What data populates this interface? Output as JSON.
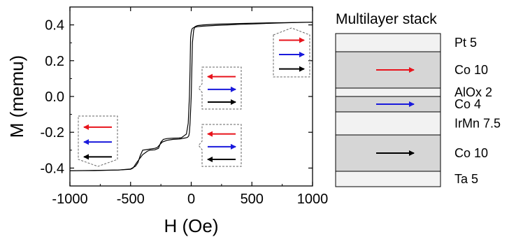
{
  "chart_data": {
    "type": "line",
    "xlabel": "H (Oe)",
    "ylabel": "M (memu)",
    "xlim": [
      -1000,
      1000
    ],
    "ylim": [
      -0.5,
      0.5
    ],
    "x_ticks": [
      "-1000",
      "-500",
      "0",
      "500",
      "1000"
    ],
    "x_tick_values": [
      -1000,
      -500,
      0,
      500,
      1000
    ],
    "y_ticks": [
      "0.4",
      "0.2",
      "0.0",
      "-0.2",
      "-0.4"
    ],
    "y_tick_values": [
      0.4,
      0.2,
      0.0,
      -0.2,
      -0.4
    ],
    "series": [
      {
        "values_x": [
          -1000,
          -800,
          -600,
          -500,
          -480,
          -450,
          -400,
          -360,
          -340,
          -300,
          -270,
          -250,
          -230,
          -200,
          -150,
          -100,
          -80,
          -70,
          -60,
          -40,
          -25,
          -15,
          -10,
          -5,
          0,
          5,
          10,
          20,
          50,
          100,
          200,
          300,
          400,
          500,
          600,
          700,
          800,
          900,
          1000
        ],
        "values_y": [
          -0.415,
          -0.413,
          -0.411,
          -0.407,
          -0.4,
          -0.37,
          -0.325,
          -0.305,
          -0.3,
          -0.298,
          -0.29,
          -0.255,
          -0.24,
          -0.235,
          -0.233,
          -0.232,
          -0.23,
          -0.225,
          -0.22,
          -0.21,
          -0.15,
          0.0,
          0.15,
          0.33,
          0.36,
          0.375,
          0.38,
          0.385,
          0.39,
          0.393,
          0.397,
          0.4,
          0.403,
          0.405,
          0.408,
          0.41,
          0.412,
          0.414,
          0.415
        ]
      },
      {
        "values_x": [
          1000,
          800,
          600,
          400,
          200,
          100,
          50,
          30,
          20,
          10,
          0,
          -10,
          -15,
          -20,
          -30,
          -40,
          -50,
          -60,
          -70,
          -80,
          -100,
          -150,
          -200,
          -240,
          -260,
          -280,
          -300,
          -350,
          -400,
          -420,
          -440,
          -460,
          -500,
          -600,
          -800,
          -1000
        ],
        "values_y": [
          0.415,
          0.413,
          0.411,
          0.408,
          0.404,
          0.4,
          0.396,
          0.39,
          0.37,
          0.3,
          0.0,
          -0.15,
          -0.2,
          -0.22,
          -0.228,
          -0.23,
          -0.232,
          -0.233,
          -0.234,
          -0.236,
          -0.238,
          -0.24,
          -0.245,
          -0.255,
          -0.27,
          -0.285,
          -0.29,
          -0.295,
          -0.3,
          -0.33,
          -0.37,
          -0.39,
          -0.405,
          -0.411,
          -0.414,
          -0.415
        ]
      }
    ],
    "grid": false,
    "insets": [
      {
        "arrows": [
          "left",
          "left",
          "left"
        ],
        "colors": [
          "#e8141c",
          "#1a1adc",
          "#000000"
        ]
      },
      {
        "arrows": [
          "left",
          "right",
          "left"
        ],
        "colors": [
          "#e8141c",
          "#1a1adc",
          "#000000"
        ]
      },
      {
        "arrows": [
          "left",
          "right",
          "right"
        ],
        "colors": [
          "#e8141c",
          "#1a1adc",
          "#000000"
        ]
      },
      {
        "arrows": [
          "right",
          "right",
          "right"
        ],
        "colors": [
          "#e8141c",
          "#1a1adc",
          "#000000"
        ]
      }
    ]
  },
  "stack": {
    "title": "Multilayer stack",
    "layers": [
      {
        "label": "Pt 5",
        "fill": "#f2f2f2",
        "arrow": null
      },
      {
        "label": "Co 10",
        "fill": "#d6d6d6",
        "arrow": "#e8141c"
      },
      {
        "label": "AlOx 2",
        "fill": "#f2f2f2",
        "arrow": null
      },
      {
        "label": "Co 4",
        "fill": "#d6d6d6",
        "arrow": "#1a1adc"
      },
      {
        "label": "IrMn 7.5",
        "fill": "#f2f2f2",
        "arrow": null
      },
      {
        "label": "Co 10",
        "fill": "#d6d6d6",
        "arrow": "#000000"
      },
      {
        "label": "Ta 5",
        "fill": "#f2f2f2",
        "arrow": null
      }
    ]
  }
}
